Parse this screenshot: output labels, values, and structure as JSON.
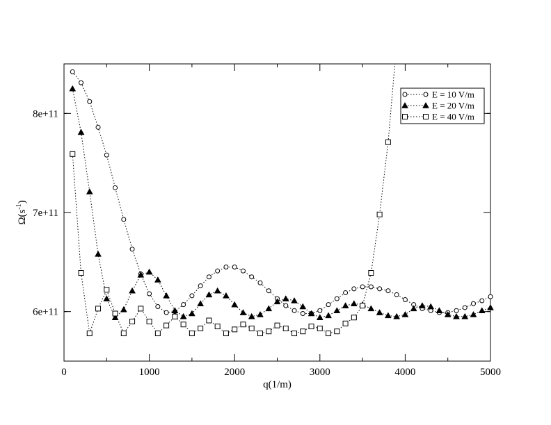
{
  "chart_data": {
    "type": "scatter",
    "xlabel": "q(1/m)",
    "ylabel_main": "Ω(s",
    "ylabel_sup": "-1",
    "ylabel_close": ")",
    "xlim": [
      0,
      5000
    ],
    "ylim": [
      550000000000,
      850000000000
    ],
    "x_ticks": [
      0,
      1000,
      2000,
      3000,
      4000,
      5000
    ],
    "x_tick_labels": [
      "0",
      "1000",
      "2000",
      "3000",
      "4000",
      "5000"
    ],
    "y_ticks": [
      600000000000,
      700000000000,
      800000000000
    ],
    "y_tick_labels": [
      "6e+11",
      "7e+11",
      "8e+11"
    ],
    "grid": false,
    "legend_position": "top-right",
    "line_style": "dotted",
    "series": [
      {
        "name": "E = 10 V/m",
        "marker": "open-circle",
        "x": [
          100,
          200,
          300,
          400,
          500,
          600,
          700,
          800,
          900,
          1000,
          1100,
          1200,
          1300,
          1400,
          1500,
          1600,
          1700,
          1800,
          1900,
          2000,
          2100,
          2200,
          2300,
          2400,
          2500,
          2600,
          2700,
          2800,
          2900,
          3000,
          3100,
          3200,
          3300,
          3400,
          3500,
          3600,
          3700,
          3800,
          3900,
          4000,
          4100,
          4200,
          4300,
          4400,
          4500,
          4600,
          4700,
          4800,
          4900,
          5000
        ],
        "y": [
          842000000000,
          831000000000,
          812000000000,
          786000000000,
          758000000000,
          725000000000,
          693000000000,
          663000000000,
          638000000000,
          618000000000,
          605000000000,
          599000000000,
          600000000000,
          607000000000,
          616000000000,
          626000000000,
          635000000000,
          641000000000,
          645000000000,
          645000000000,
          641000000000,
          635000000000,
          629000000000,
          621000000000,
          613000000000,
          606000000000,
          601000000000,
          598000000000,
          598000000000,
          601000000000,
          607000000000,
          613000000000,
          619000000000,
          623000000000,
          625000000000,
          625000000000,
          623000000000,
          621000000000,
          617000000000,
          612000000000,
          607000000000,
          603000000000,
          601000000000,
          599000000000,
          599000000000,
          601000000000,
          604000000000,
          608000000000,
          611000000000,
          615000000000
        ]
      },
      {
        "name": "E = 20 V/m",
        "marker": "filled-triangle",
        "x": [
          100,
          200,
          300,
          400,
          500,
          600,
          700,
          800,
          900,
          1000,
          1100,
          1200,
          1300,
          1400,
          1500,
          1600,
          1700,
          1800,
          1900,
          2000,
          2100,
          2200,
          2300,
          2400,
          2500,
          2600,
          2700,
          2800,
          2900,
          3000,
          3100,
          3200,
          3300,
          3400,
          3500,
          3600,
          3700,
          3800,
          3900,
          4000,
          4100,
          4200,
          4300,
          4400,
          4500,
          4600,
          4700,
          4800,
          4900,
          5000
        ],
        "y": [
          825000000000,
          781000000000,
          721000000000,
          658000000000,
          613000000000,
          594000000000,
          602000000000,
          621000000000,
          637000000000,
          640000000000,
          632000000000,
          616000000000,
          601000000000,
          595000000000,
          598000000000,
          608000000000,
          617000000000,
          621000000000,
          616000000000,
          607000000000,
          599000000000,
          595000000000,
          597000000000,
          603000000000,
          610000000000,
          613000000000,
          611000000000,
          605000000000,
          598000000000,
          594000000000,
          596000000000,
          601000000000,
          606000000000,
          608000000000,
          607000000000,
          603000000000,
          599000000000,
          596000000000,
          595000000000,
          597000000000,
          603000000000,
          606000000000,
          605000000000,
          601000000000,
          597000000000,
          595000000000,
          595000000000,
          597000000000,
          601000000000,
          604000000000
        ]
      },
      {
        "name": "E = 40 V/m",
        "marker": "open-square",
        "x": [
          100,
          200,
          300,
          400,
          500,
          600,
          700,
          800,
          900,
          1000,
          1100,
          1200,
          1300,
          1400,
          1500,
          1600,
          1700,
          1800,
          1900,
          2000,
          2100,
          2200,
          2300,
          2400,
          2500,
          2600,
          2700,
          2800,
          2900,
          3000,
          3100,
          3200,
          3300,
          3400,
          3500,
          3600,
          3700,
          3800
        ],
        "y": [
          759000000000,
          639000000000,
          578000000000,
          603000000000,
          622000000000,
          598000000000,
          578000000000,
          590000000000,
          603000000000,
          590000000000,
          578000000000,
          586000000000,
          595000000000,
          587000000000,
          578000000000,
          583000000000,
          591000000000,
          585000000000,
          578000000000,
          582000000000,
          587000000000,
          583000000000,
          578000000000,
          580000000000,
          586000000000,
          583000000000,
          578000000000,
          580000000000,
          585000000000,
          583000000000,
          578000000000,
          580000000000,
          588000000000,
          594000000000,
          606000000000,
          639000000000,
          698000000000,
          771000000000
        ],
        "tail_x": [
          3900
        ],
        "tail_y": [
          870000000000
        ]
      }
    ]
  }
}
